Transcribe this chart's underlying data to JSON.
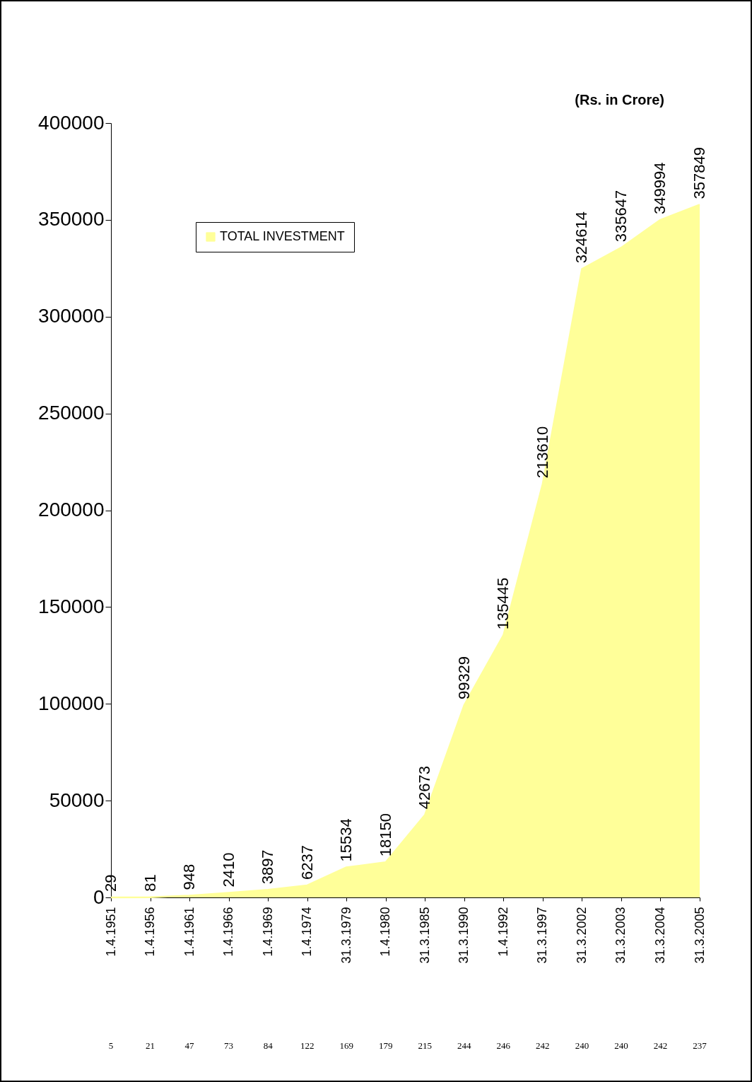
{
  "chart_data": {
    "type": "area",
    "title": "(Rs. in Crore)",
    "categories": [
      "1.4.1951",
      "1.4.1956",
      "1.4.1961",
      "1.4.1966",
      "1.4.1969",
      "1.4.1974",
      "31.3.1979",
      "1.4.1980",
      "31.3.1985",
      "31.3.1990",
      "1.4.1992",
      "31.3.1997",
      "31.3.2002",
      "31.3.2003",
      "31.3.2004",
      "31.3.2005"
    ],
    "series": [
      {
        "name": "TOTAL INVESTMENT",
        "color": "#ffff99",
        "values": [
          29,
          81,
          948,
          2410,
          3897,
          6237,
          15534,
          18150,
          42673,
          99329,
          135445,
          213610,
          324614,
          335647,
          349994,
          357849
        ]
      }
    ],
    "ylim": [
      0,
      400000
    ],
    "yticks": [
      0,
      50000,
      100000,
      150000,
      200000,
      250000,
      300000,
      350000,
      400000
    ],
    "data_labels": true,
    "grid": false,
    "legend": "top left",
    "annotations": [
      "5",
      "21",
      "47",
      "73",
      "84",
      "122",
      "169",
      "179",
      "215",
      "244",
      "246",
      "242",
      "240",
      "240",
      "242",
      "237"
    ]
  }
}
